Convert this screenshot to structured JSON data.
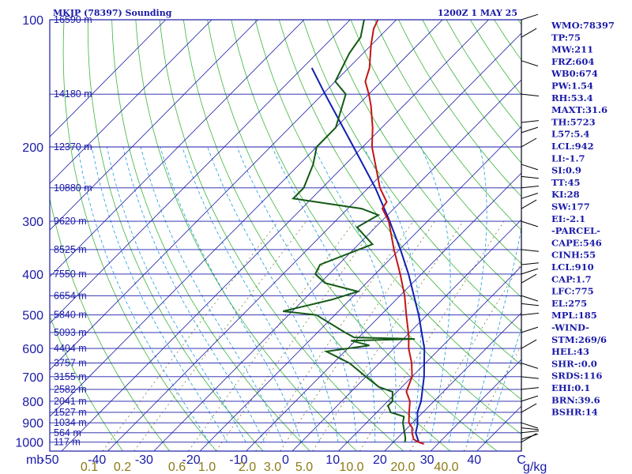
{
  "header": {
    "title": "MKJP (78397) Sounding",
    "time": "1200Z  1 MAY 25"
  },
  "axis": {
    "pressure_unit": "mb",
    "mixing_unit": "g/kg"
  },
  "colors": {
    "frame": "#1a1aa8",
    "dry_adiabat": "#3cb43c",
    "moist_adiabat": "#1c9ce0",
    "mixing_ratio": "#7a7a3c",
    "temperature": "#c41414",
    "dewpoint": "#145a14",
    "parcel": "#1020b0",
    "wind": "#000000"
  },
  "chart_data": {
    "type": "skew-t",
    "title": "MKJP (78397) Sounding",
    "valid_time": "1200Z  1 MAY 25",
    "p_range": [
      1050,
      100
    ],
    "t_range_at_base": [
      -50,
      50
    ],
    "pressure_levels": [
      100,
      200,
      300,
      400,
      500,
      600,
      700,
      800,
      900,
      1000
    ],
    "isotherm_labels": [
      "-50",
      "-40",
      "-30",
      "-20",
      "-10",
      "0",
      "10",
      "20",
      "30",
      "40",
      "C"
    ],
    "isotherm_values": [
      -50,
      -40,
      -30,
      -20,
      -10,
      0,
      10,
      20,
      30,
      40
    ],
    "mixing_ratio_labels": [
      "0.1",
      "0.2",
      "0.6",
      "1.0",
      "2.0",
      "3.0",
      "5.0",
      "10.0",
      "20.0",
      "40.0"
    ],
    "mixing_ratio_values": [
      0.1,
      0.2,
      0.6,
      1.0,
      2.0,
      3.0,
      5.0,
      10.0,
      20.0,
      40.0
    ],
    "height_labels": [
      {
        "p": 100,
        "text": "16590 m"
      },
      {
        "p": 150,
        "text": "14180 m"
      },
      {
        "p": 200,
        "text": "12370 m"
      },
      {
        "p": 250,
        "text": "10880 m"
      },
      {
        "p": 300,
        "text": "9620 m"
      },
      {
        "p": 350,
        "text": "8525 m"
      },
      {
        "p": 400,
        "text": "7550 m"
      },
      {
        "p": 450,
        "text": "6654 m"
      },
      {
        "p": 500,
        "text": "5840 m"
      },
      {
        "p": 550,
        "text": "5093 m"
      },
      {
        "p": 600,
        "text": "4404 m"
      },
      {
        "p": 650,
        "text": "3757 m"
      },
      {
        "p": 700,
        "text": "3155 m"
      },
      {
        "p": 750,
        "text": "2582 m"
      },
      {
        "p": 800,
        "text": "2041 m"
      },
      {
        "p": 850,
        "text": "1527 m"
      },
      {
        "p": 900,
        "text": "1034 m"
      },
      {
        "p": 950,
        "text": "564 m"
      },
      {
        "p": 1000,
        "text": "117 m"
      }
    ],
    "temperature": [
      {
        "p": 1010,
        "t": 27.0
      },
      {
        "p": 1000,
        "t": 25.5
      },
      {
        "p": 985,
        "t": 23.8
      },
      {
        "p": 950,
        "t": 22.0
      },
      {
        "p": 925,
        "t": 21.0
      },
      {
        "p": 900,
        "t": 19.2
      },
      {
        "p": 850,
        "t": 17.0
      },
      {
        "p": 800,
        "t": 14.8
      },
      {
        "p": 760,
        "t": 12.0
      },
      {
        "p": 700,
        "t": 10.0
      },
      {
        "p": 650,
        "t": 7.0
      },
      {
        "p": 600,
        "t": 3.2
      },
      {
        "p": 560,
        "t": 0.5
      },
      {
        "p": 500,
        "t": -4.5
      },
      {
        "p": 450,
        "t": -9.0
      },
      {
        "p": 400,
        "t": -14.6
      },
      {
        "p": 350,
        "t": -21.2
      },
      {
        "p": 300,
        "t": -28.4
      },
      {
        "p": 280,
        "t": -32.5
      },
      {
        "p": 270,
        "t": -33.0
      },
      {
        "p": 250,
        "t": -37.5
      },
      {
        "p": 220,
        "t": -43.5
      },
      {
        "p": 200,
        "t": -48.0
      },
      {
        "p": 180,
        "t": -52.0
      },
      {
        "p": 160,
        "t": -57.0
      },
      {
        "p": 150,
        "t": -60.0
      },
      {
        "p": 140,
        "t": -63.5
      },
      {
        "p": 130,
        "t": -65.5
      },
      {
        "p": 115,
        "t": -70.0
      },
      {
        "p": 105,
        "t": -73.0
      },
      {
        "p": 100,
        "t": -74.0
      }
    ],
    "dewpoint": [
      {
        "p": 1000,
        "td": 22.5
      },
      {
        "p": 980,
        "td": 21.8
      },
      {
        "p": 950,
        "td": 20.4
      },
      {
        "p": 900,
        "td": 17.9
      },
      {
        "p": 870,
        "td": 16.8
      },
      {
        "p": 850,
        "td": 13.0
      },
      {
        "p": 820,
        "td": 11.0
      },
      {
        "p": 800,
        "td": 11.0
      },
      {
        "p": 760,
        "td": 9.0
      },
      {
        "p": 740,
        "td": 5.0
      },
      {
        "p": 700,
        "td": 0.0
      },
      {
        "p": 650,
        "td": -6.5
      },
      {
        "p": 610,
        "td": -14.0
      },
      {
        "p": 590,
        "td": -6.0
      },
      {
        "p": 575,
        "td": -11.0
      },
      {
        "p": 570,
        "td": 2.5
      },
      {
        "p": 565,
        "td": -11.0
      },
      {
        "p": 550,
        "td": -14.0
      },
      {
        "p": 500,
        "td": -24.0
      },
      {
        "p": 490,
        "td": -32.0
      },
      {
        "p": 460,
        "td": -24.0
      },
      {
        "p": 440,
        "td": -20.0
      },
      {
        "p": 420,
        "td": -29.0
      },
      {
        "p": 400,
        "td": -33.0
      },
      {
        "p": 380,
        "td": -34.0
      },
      {
        "p": 340,
        "td": -27.0
      },
      {
        "p": 310,
        "td": -34.0
      },
      {
        "p": 290,
        "td": -32.0
      },
      {
        "p": 280,
        "td": -37.0
      },
      {
        "p": 265,
        "td": -54.0
      },
      {
        "p": 250,
        "td": -54.0
      },
      {
        "p": 220,
        "td": -57.0
      },
      {
        "p": 200,
        "td": -60.0
      },
      {
        "p": 180,
        "td": -60.0
      },
      {
        "p": 150,
        "td": -65.0
      },
      {
        "p": 140,
        "td": -70.0
      },
      {
        "p": 120,
        "td": -73.0
      },
      {
        "p": 110,
        "td": -74.0
      },
      {
        "p": 100,
        "td": -77.0
      }
    ],
    "parcel": [
      {
        "p": 1000,
        "t": 25.5
      },
      {
        "p": 950,
        "t": 22.8
      },
      {
        "p": 910,
        "t": 21.5
      },
      {
        "p": 850,
        "t": 18.8
      },
      {
        "p": 800,
        "t": 17.2
      },
      {
        "p": 700,
        "t": 12.6
      },
      {
        "p": 600,
        "t": 6.6
      },
      {
        "p": 500,
        "t": -1.8
      },
      {
        "p": 400,
        "t": -12.8
      },
      {
        "p": 350,
        "t": -19.8
      },
      {
        "p": 300,
        "t": -28.2
      },
      {
        "p": 250,
        "t": -38.5
      },
      {
        "p": 200,
        "t": -52.0
      },
      {
        "p": 150,
        "t": -69.5
      },
      {
        "p": 130,
        "t": -78.0
      }
    ],
    "wind_pressures": [
      1000,
      985,
      950,
      925,
      900,
      850,
      800,
      750,
      700,
      650,
      600,
      550,
      500,
      470,
      450,
      420,
      400,
      380,
      350,
      300,
      280,
      265,
      250,
      235,
      220,
      200,
      185,
      175,
      150,
      125,
      110,
      100
    ],
    "mixing_ratio_guides": [
      10,
      20
    ]
  },
  "indices": [
    "WMO:78397",
    "TP:75",
    "MW:211",
    "FRZ:604",
    "WB0:674",
    "PW:1.54",
    "RH:53.4",
    "MAXT:31.6",
    "TH:5723",
    "L57:5.4",
    "LCL:942",
    "LI:-1.7",
    "SI:0.9",
    "TT:45",
    "KI:28",
    "SW:177",
    "EI:-2.1",
    "-PARCEL-",
    "CAPE:546",
    "CINH:55",
    "LCL:910",
    "CAP:1.7",
    "LFC:775",
    "EL:275",
    "MPL:185",
    "-WIND-",
    "STM:269/6",
    "HEL:43",
    "SHR-:0.0",
    "SRDS:116",
    "EHI:0.1",
    "BRN:39.6",
    "BSHR:14"
  ]
}
